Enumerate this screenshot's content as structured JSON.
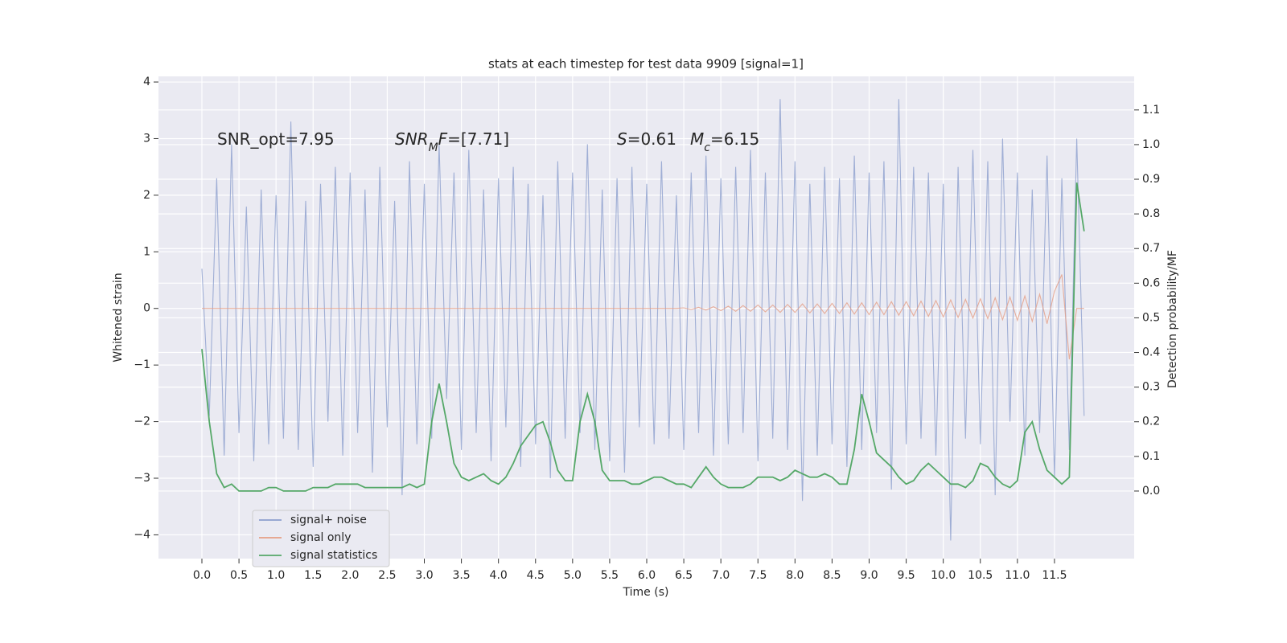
{
  "chart_data": {
    "type": "line",
    "title": "stats at each timestep for test data 9909 [signal=1]",
    "xlabel": "Time (s)",
    "ylabel": "Whitened strain",
    "y2label": "Detection probability/MF",
    "annotations": [
      {
        "parts": [
          {
            "text": "SNR_opt=7.95"
          }
        ]
      },
      {
        "parts": [
          {
            "text": "SNR",
            "italic": true
          },
          {
            "text": "M",
            "italic": true,
            "sub": true
          },
          {
            "text": "F",
            "italic": true
          },
          {
            "text": "=[7.71]"
          }
        ]
      },
      {
        "parts": [
          {
            "text": "S",
            "italic": true
          },
          {
            "text": "=0.61"
          }
        ]
      },
      {
        "parts": [
          {
            "text": "M",
            "italic": true
          },
          {
            "text": "c",
            "italic": true,
            "sub": true
          },
          {
            "text": "=6.15"
          }
        ]
      }
    ],
    "grid": true,
    "legend": "lower left",
    "x": [
      0,
      0.1,
      0.2,
      0.3,
      0.4,
      0.5,
      0.6,
      0.7,
      0.8,
      0.9,
      1,
      1.1,
      1.2,
      1.3,
      1.4,
      1.5,
      1.6,
      1.7,
      1.8,
      1.9,
      2,
      2.1,
      2.2,
      2.3,
      2.4,
      2.5,
      2.6,
      2.7,
      2.8,
      2.9,
      3,
      3.1,
      3.2,
      3.3,
      3.4,
      3.5,
      3.6,
      3.7,
      3.8,
      3.9,
      4,
      4.1,
      4.2,
      4.3,
      4.4,
      4.5,
      4.6,
      4.7,
      4.8,
      4.9,
      5,
      5.1,
      5.2,
      5.3,
      5.4,
      5.5,
      5.6,
      5.7,
      5.8,
      5.9,
      6,
      6.1,
      6.2,
      6.3,
      6.4,
      6.5,
      6.6,
      6.7,
      6.8,
      6.9,
      7,
      7.1,
      7.2,
      7.3,
      7.4,
      7.5,
      7.6,
      7.7,
      7.8,
      7.9,
      8,
      8.1,
      8.2,
      8.3,
      8.4,
      8.5,
      8.6,
      8.7,
      8.8,
      8.9,
      9,
      9.1,
      9.2,
      9.3,
      9.4,
      9.5,
      9.6,
      9.7,
      9.8,
      9.9,
      10,
      10.1,
      10.2,
      10.3,
      10.4,
      10.5,
      10.6,
      10.7,
      10.8,
      10.9,
      11,
      11.1,
      11.2,
      11.3,
      11.4,
      11.5,
      11.6,
      11.7,
      11.8,
      11.9
    ],
    "series": [
      {
        "name": "signal+ noise",
        "color": "#8c9fcd",
        "values": [
          0.7,
          -1.9,
          2.3,
          -2.6,
          2.9,
          -2.2,
          1.8,
          -2.7,
          2.1,
          -2.4,
          2.0,
          -2.3,
          3.3,
          -2.5,
          1.9,
          -2.8,
          2.2,
          -2.0,
          2.5,
          -2.6,
          2.4,
          -2.2,
          2.1,
          -2.9,
          2.5,
          -2.1,
          1.9,
          -3.3,
          2.6,
          -2.4,
          2.2,
          -2.3,
          2.9,
          -1.6,
          2.4,
          -2.5,
          2.8,
          -2.2,
          2.1,
          -2.7,
          2.3,
          -2.1,
          2.5,
          -2.8,
          2.2,
          -2.4,
          2.0,
          -3.0,
          2.6,
          -2.3,
          2.4,
          -2.2,
          2.9,
          -2.5,
          2.1,
          -2.7,
          2.3,
          -2.9,
          2.5,
          -2.1,
          2.2,
          -2.4,
          2.6,
          -2.3,
          2.0,
          -2.5,
          2.4,
          -2.2,
          2.7,
          -2.6,
          2.3,
          -2.4,
          2.5,
          -2.2,
          2.8,
          -2.7,
          2.4,
          -2.3,
          3.7,
          -2.5,
          2.6,
          -3.4,
          2.2,
          -2.6,
          2.5,
          -2.4,
          2.3,
          -2.8,
          2.7,
          -2.5,
          2.4,
          -2.2,
          2.6,
          -3.2,
          3.7,
          -2.4,
          2.5,
          -2.3,
          2.4,
          -2.6,
          2.2,
          -4.1,
          2.5,
          -2.3,
          2.8,
          -2.4,
          2.6,
          -3.3,
          3.0,
          -2.0,
          2.4,
          -2.6,
          2.1,
          -2.2,
          2.7,
          -3.0,
          2.3,
          -2.5,
          3.0,
          -1.9
        ]
      },
      {
        "name": "signal only",
        "color": "#e59e85",
        "values": [
          0,
          0,
          0,
          0,
          0,
          0,
          0,
          0,
          0,
          0,
          0,
          0,
          0,
          0,
          0,
          0,
          0,
          0,
          0,
          0,
          0,
          0,
          0,
          0,
          0,
          0,
          0,
          0,
          0,
          0,
          0,
          0,
          0,
          0,
          0,
          0,
          0,
          0,
          0,
          0,
          0,
          0,
          0,
          0,
          0,
          0,
          0,
          0,
          0,
          0,
          0,
          0,
          0,
          0,
          0,
          0,
          0,
          0,
          0,
          0,
          0,
          0,
          0,
          0,
          0,
          0.01,
          -0.02,
          0.02,
          -0.03,
          0.03,
          -0.04,
          0.04,
          -0.05,
          0.05,
          -0.05,
          0.06,
          -0.06,
          0.06,
          -0.07,
          0.07,
          -0.07,
          0.08,
          -0.08,
          0.08,
          -0.09,
          0.09,
          -0.09,
          0.1,
          -0.1,
          0.1,
          -0.11,
          0.11,
          -0.11,
          0.12,
          -0.12,
          0.12,
          -0.13,
          0.13,
          -0.14,
          0.14,
          -0.15,
          0.15,
          -0.16,
          0.16,
          -0.17,
          0.17,
          -0.18,
          0.19,
          -0.2,
          0.2,
          -0.21,
          0.22,
          -0.23,
          0.25,
          -0.27,
          0.3,
          0.6,
          -0.9,
          0,
          0
        ]
      },
      {
        "name": "signal statistics",
        "color": "#55a868",
        "axis": "y2",
        "values": [
          0.41,
          0.2,
          0.05,
          0.01,
          0.02,
          0,
          0,
          0,
          0,
          0.01,
          0.01,
          0,
          0,
          0,
          0,
          0.01,
          0.01,
          0.01,
          0.02,
          0.02,
          0.02,
          0.02,
          0.01,
          0.01,
          0.01,
          0.01,
          0.01,
          0.01,
          0.02,
          0.01,
          0.02,
          0.2,
          0.31,
          0.2,
          0.08,
          0.04,
          0.03,
          0.04,
          0.05,
          0.03,
          0.02,
          0.04,
          0.08,
          0.13,
          0.16,
          0.19,
          0.2,
          0.14,
          0.06,
          0.03,
          0.03,
          0.2,
          0.28,
          0.2,
          0.06,
          0.03,
          0.03,
          0.03,
          0.02,
          0.02,
          0.03,
          0.04,
          0.04,
          0.03,
          0.02,
          0.02,
          0.01,
          0.04,
          0.07,
          0.04,
          0.02,
          0.01,
          0.01,
          0.01,
          0.02,
          0.04,
          0.04,
          0.04,
          0.03,
          0.04,
          0.06,
          0.05,
          0.04,
          0.04,
          0.05,
          0.04,
          0.02,
          0.02,
          0.12,
          0.28,
          0.2,
          0.11,
          0.09,
          0.07,
          0.04,
          0.02,
          0.03,
          0.06,
          0.08,
          0.06,
          0.04,
          0.02,
          0.02,
          0.01,
          0.03,
          0.08,
          0.07,
          0.04,
          0.02,
          0.01,
          0.03,
          0.17,
          0.2,
          0.12,
          0.06,
          0.04,
          0.02,
          0.04,
          0.89,
          0.75
        ]
      }
    ],
    "xlim": [
      -0.586,
      12.575
    ],
    "ylim": [
      -4.42,
      4.1
    ],
    "y2lim": [
      -0.195,
      1.197
    ],
    "xticks": [
      {
        "value": 0,
        "label": "0.0"
      },
      0.5,
      {
        "value": 1,
        "label": "1.0"
      },
      1.5,
      {
        "value": 2,
        "label": "2.0"
      },
      2.5,
      {
        "value": 3,
        "label": "3.0"
      },
      3.5,
      {
        "value": 4,
        "label": "4.0"
      },
      4.5,
      {
        "value": 5,
        "label": "5.0"
      },
      5.5,
      {
        "value": 6,
        "label": "6.0"
      },
      6.5,
      {
        "value": 7,
        "label": "7.0"
      },
      7.5,
      {
        "value": 8,
        "label": "8.0"
      },
      8.5,
      {
        "value": 9,
        "label": "9.0"
      },
      9.5,
      {
        "value": 10,
        "label": "10.0"
      },
      10.5,
      {
        "value": 11,
        "label": "11.0"
      },
      11.5
    ],
    "yticks": [
      {
        "value": -4,
        "label": "−4"
      },
      {
        "value": -3,
        "label": "−3"
      },
      {
        "value": -2,
        "label": "−2"
      },
      {
        "value": -1,
        "label": "−1"
      },
      0,
      1,
      2,
      3,
      4
    ],
    "y2ticks": [
      {
        "value": 0,
        "label": "0.0"
      },
      0.1,
      0.2,
      0.3,
      0.4,
      0.5,
      0.6,
      0.7,
      0.8,
      0.9,
      {
        "value": 1,
        "label": "1.0"
      },
      1.1
    ]
  }
}
